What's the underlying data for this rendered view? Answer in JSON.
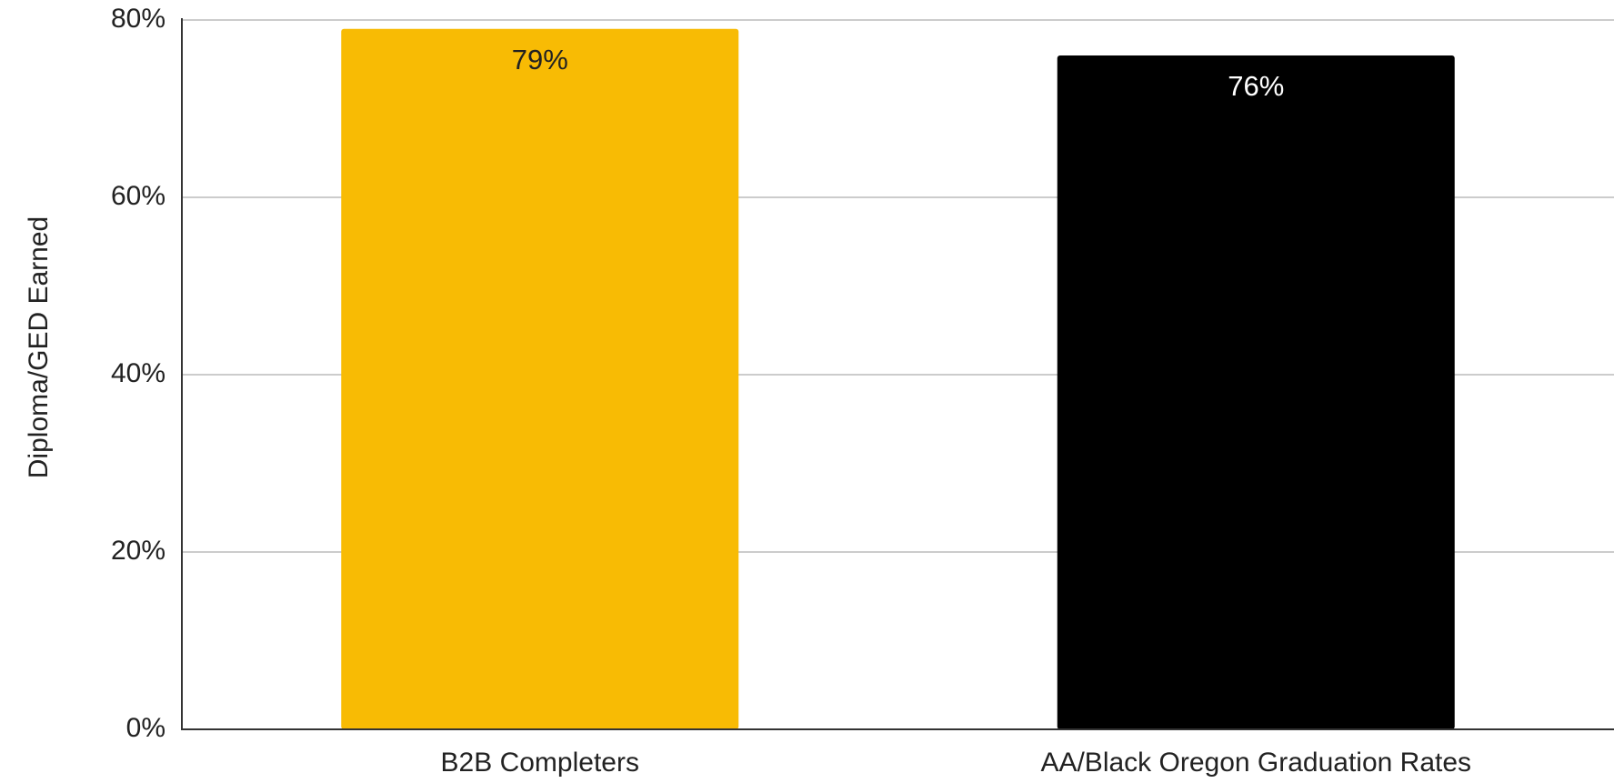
{
  "chart_data": {
    "type": "bar",
    "title": "",
    "xlabel": "",
    "ylabel": "Diploma/GED Earned",
    "categories": [
      "B2B Completers",
      "AA/Black Oregon Graduation Rates"
    ],
    "values": [
      79,
      76
    ],
    "data_labels": [
      "79%",
      "76%"
    ],
    "bar_colors": [
      "#F8BB04",
      "#000000"
    ],
    "data_label_colors": [
      "#222222",
      "#ffffff"
    ],
    "ylim": [
      0,
      80
    ],
    "yticks": [
      0,
      20,
      40,
      60,
      80
    ],
    "ytick_labels": [
      "0%",
      "20%",
      "40%",
      "60%",
      "80%"
    ],
    "grid": true,
    "legend": "none"
  }
}
